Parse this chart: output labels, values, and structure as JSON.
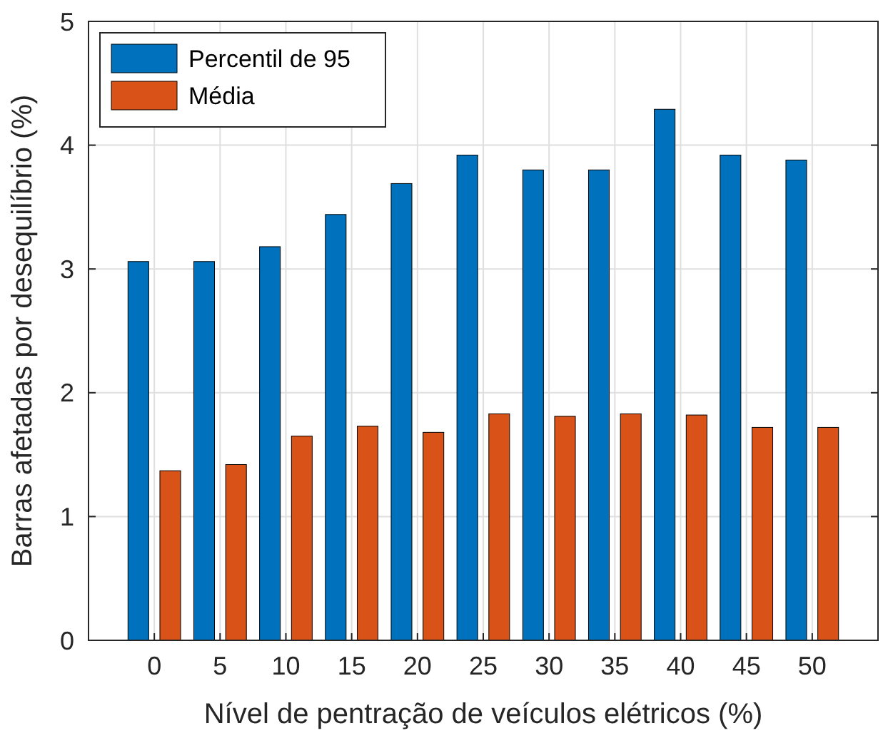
{
  "chart_data": {
    "type": "bar",
    "xlabel": "Nível de pentração de veículos elétricos (%)",
    "ylabel": "Barras afetadas por desequilíbrio (%)",
    "categories": [
      "0",
      "5",
      "10",
      "15",
      "20",
      "25",
      "30",
      "35",
      "40",
      "45",
      "50"
    ],
    "series": [
      {
        "name": "Percentil de 95",
        "color": "#0072bd",
        "values": [
          3.06,
          3.06,
          3.18,
          3.44,
          3.69,
          3.92,
          3.8,
          3.8,
          4.29,
          3.92,
          3.88
        ]
      },
      {
        "name": "Média",
        "color": "#d95319",
        "values": [
          1.37,
          1.42,
          1.65,
          1.73,
          1.68,
          1.83,
          1.81,
          1.83,
          1.82,
          1.72,
          1.72
        ]
      }
    ],
    "ylim": [
      0,
      5
    ],
    "yticks": [
      0,
      1,
      2,
      3,
      4,
      5
    ],
    "grid": true,
    "legend": "top left"
  }
}
